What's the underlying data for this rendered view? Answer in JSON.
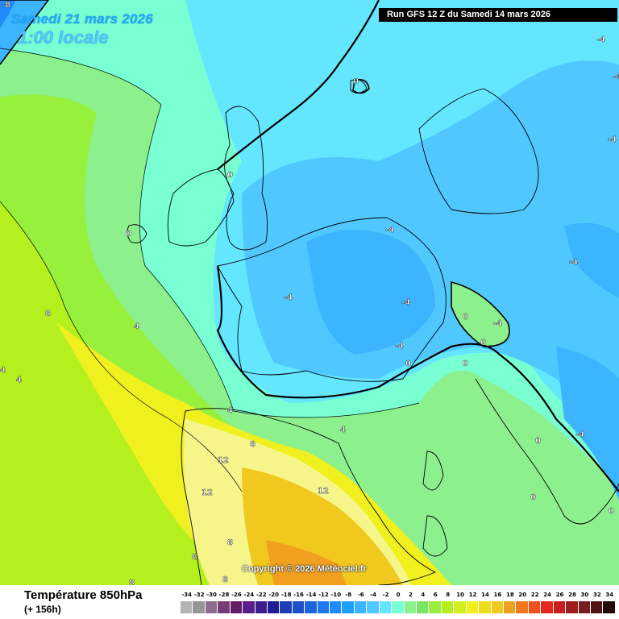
{
  "header": {
    "date": "Samedi 21 mars 2026",
    "time": "1:00 locale",
    "run": "Run GFS 12 Z du Samedi 14 mars 2026",
    "corner_value": "-8"
  },
  "footer": {
    "parameter": "Température 850hPa",
    "lead": "(+ 156h)",
    "copyright": "Copyright © 2026 Météociel.fr"
  },
  "legend": {
    "values": [
      "-34",
      "-32",
      "-30",
      "-28",
      "-26",
      "-24",
      "-22",
      "-20",
      "-18",
      "-16",
      "-14",
      "-12",
      "-10",
      "-8",
      "-6",
      "-4",
      "-2",
      "0",
      "2",
      "4",
      "6",
      "8",
      "10",
      "12",
      "14",
      "16",
      "18",
      "20",
      "22",
      "24",
      "26",
      "28",
      "30",
      "32",
      "34"
    ],
    "colors": [
      "#b4b4b4",
      "#969696",
      "#8c6e8c",
      "#783c78",
      "#641e64",
      "#5a1e8c",
      "#3c1e8c",
      "#1e1e96",
      "#1e3cb4",
      "#1e50c8",
      "#1e64dc",
      "#1e78f0",
      "#1e8cff",
      "#1ea0ff",
      "#3cb4ff",
      "#50c8ff",
      "#64e6ff",
      "#78ffd2",
      "#8cf08c",
      "#78e664",
      "#96f03c",
      "#b4f01e",
      "#d2f01e",
      "#f0f01e",
      "#f0dc1e",
      "#f0c81e",
      "#f0a01e",
      "#f0781e",
      "#f0501e",
      "#e6281e",
      "#c81e1e",
      "#a01e1e",
      "#781e1e",
      "#501414",
      "#280a0a"
    ]
  },
  "contour_labels": [
    "0",
    "0",
    "0",
    "0",
    "0",
    "0",
    "0",
    "0",
    "0",
    "0",
    "-4",
    "-4",
    "-4",
    "-4",
    "-4",
    "-4",
    "-4",
    "-4",
    "-4",
    "4",
    "4",
    "4",
    "4",
    "4",
    "8",
    "8",
    "8",
    "8",
    "8",
    "8",
    "12",
    "12",
    "12",
    "-8",
    "-4"
  ]
}
